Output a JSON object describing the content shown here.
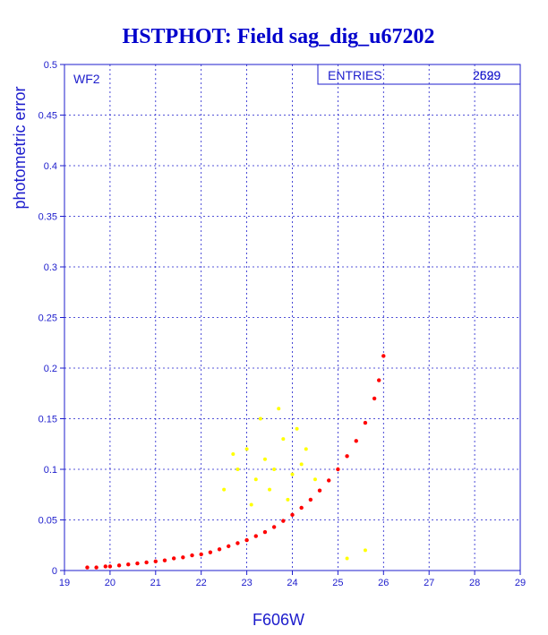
{
  "chart_data": {
    "type": "scatter",
    "title": "HSTPHOT: Field sag_dig_u67202",
    "xlabel": "F606W",
    "ylabel": "photometric error",
    "xlim": [
      19,
      29
    ],
    "ylim": [
      0,
      0.5
    ],
    "x_ticks": [
      "19",
      "20",
      "21",
      "22",
      "23",
      "24",
      "25",
      "26",
      "27",
      "28",
      "29"
    ],
    "y_ticks": [
      "0",
      "0.05",
      "0.1",
      "0.15",
      "0.2",
      "0.25",
      "0.3",
      "0.35",
      "0.4",
      "0.45",
      "0.5"
    ],
    "grid": true,
    "panel_label": "WF2",
    "stats_box": {
      "label": "ENTRIES",
      "values": [
        "2599",
        "2629"
      ]
    },
    "series": [
      {
        "color": "#ff0000",
        "x": [
          19.5,
          19.7,
          19.9,
          20.0,
          20.2,
          20.4,
          20.6,
          20.8,
          21.0,
          21.2,
          21.4,
          21.6,
          21.8,
          22.0,
          22.2,
          22.4,
          22.6,
          22.8,
          23.0,
          23.2,
          23.4,
          23.6,
          23.8,
          24.0,
          24.2,
          24.4,
          24.6,
          24.8,
          25.0,
          25.2,
          25.4,
          25.6,
          25.8,
          25.9,
          26.0
        ],
        "y": [
          0.003,
          0.003,
          0.004,
          0.004,
          0.005,
          0.006,
          0.007,
          0.008,
          0.009,
          0.01,
          0.012,
          0.013,
          0.015,
          0.016,
          0.018,
          0.021,
          0.024,
          0.027,
          0.03,
          0.034,
          0.038,
          0.043,
          0.049,
          0.055,
          0.062,
          0.07,
          0.079,
          0.089,
          0.1,
          0.113,
          0.128,
          0.146,
          0.17,
          0.188,
          0.212
        ]
      },
      {
        "color": "#ffff00",
        "x": [
          22.5,
          22.8,
          23.0,
          23.2,
          23.4,
          23.6,
          23.8,
          24.0,
          24.2,
          24.5,
          23.3,
          23.7,
          23.1,
          23.9,
          24.3,
          22.7,
          23.5,
          24.1,
          25.2,
          25.6
        ],
        "y": [
          0.08,
          0.1,
          0.12,
          0.09,
          0.11,
          0.1,
          0.13,
          0.095,
          0.105,
          0.09,
          0.15,
          0.16,
          0.065,
          0.07,
          0.12,
          0.115,
          0.08,
          0.14,
          0.012,
          0.02
        ]
      }
    ]
  }
}
